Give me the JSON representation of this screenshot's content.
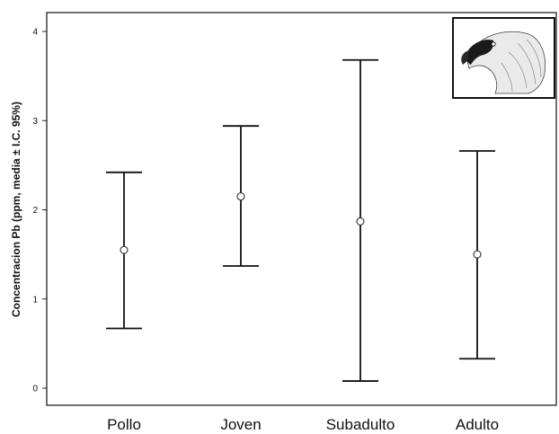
{
  "chart_data": {
    "type": "errorbar",
    "categories": [
      "Pollo",
      "Joven",
      "Subadulto",
      "Adulto"
    ],
    "series": [
      {
        "mean": [
          1.55,
          2.15,
          1.87,
          1.5
        ],
        "lower": [
          0.67,
          1.37,
          0.08,
          0.33
        ],
        "upper": [
          2.42,
          2.94,
          3.68,
          2.66
        ]
      }
    ],
    "ylabel": "Concentracion Pb (ppm, media ± I.C. 95%)",
    "yticks": [
      "0",
      "1",
      "2",
      "3",
      "4"
    ],
    "ylim": [
      0,
      4
    ],
    "grid": false,
    "inset": "vulture-head-drawing"
  }
}
